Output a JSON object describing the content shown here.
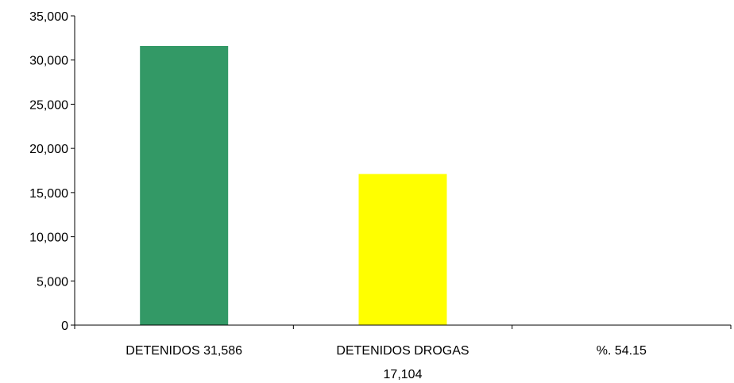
{
  "chart_data": {
    "type": "bar",
    "categories": [
      [
        "DETENIDOS    31,586"
      ],
      [
        "DETENIDOS DROGAS",
        "17,104"
      ],
      [
        "%.    54.15"
      ]
    ],
    "values": [
      31586,
      17104,
      0
    ],
    "colors": [
      "#339966",
      "#ffff00",
      "#ffffff"
    ],
    "ylim": [
      0,
      35000
    ],
    "yticks": [
      0,
      5000,
      10000,
      15000,
      20000,
      25000,
      30000,
      35000
    ],
    "ytick_labels": [
      "0",
      "5,000",
      "10,000",
      "15,000",
      "20,000",
      "25,000",
      "30,000",
      "35,000"
    ],
    "grid": false,
    "legend": "none"
  }
}
